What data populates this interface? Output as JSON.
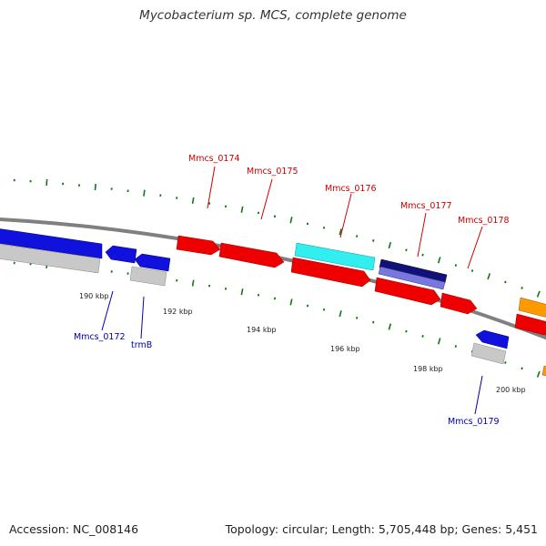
{
  "title": "Mycobacterium sp. MCS, complete genome",
  "footer": {
    "accession": "Accession: NC_008146",
    "summary": "Topology: circular; Length: 5,705,448 bp; Genes: 5,451"
  },
  "colors": {
    "red": "#ee0000",
    "blue": "#1111dd",
    "gray": "#c8c8c8",
    "cyan": "#33eeee",
    "navy": "#111177",
    "periwinkle": "#7777dd",
    "orange": "#ff9900",
    "tick": "#117711",
    "backbone": "#808080",
    "label_red": "#cc0000",
    "label_blue": "#0000aa"
  },
  "scale_labels": [
    "190 kbp",
    "192 kbp",
    "194 kbp",
    "196 kbp",
    "198 kbp",
    "200 kbp"
  ],
  "gene_labels": {
    "above": [
      "Mmcs_0174",
      "Mmcs_0175",
      "Mmcs_0176",
      "Mmcs_0177",
      "Mmcs_0178"
    ],
    "below": [
      "Mmcs_0172",
      "trmB",
      "Mmcs_0179"
    ]
  }
}
